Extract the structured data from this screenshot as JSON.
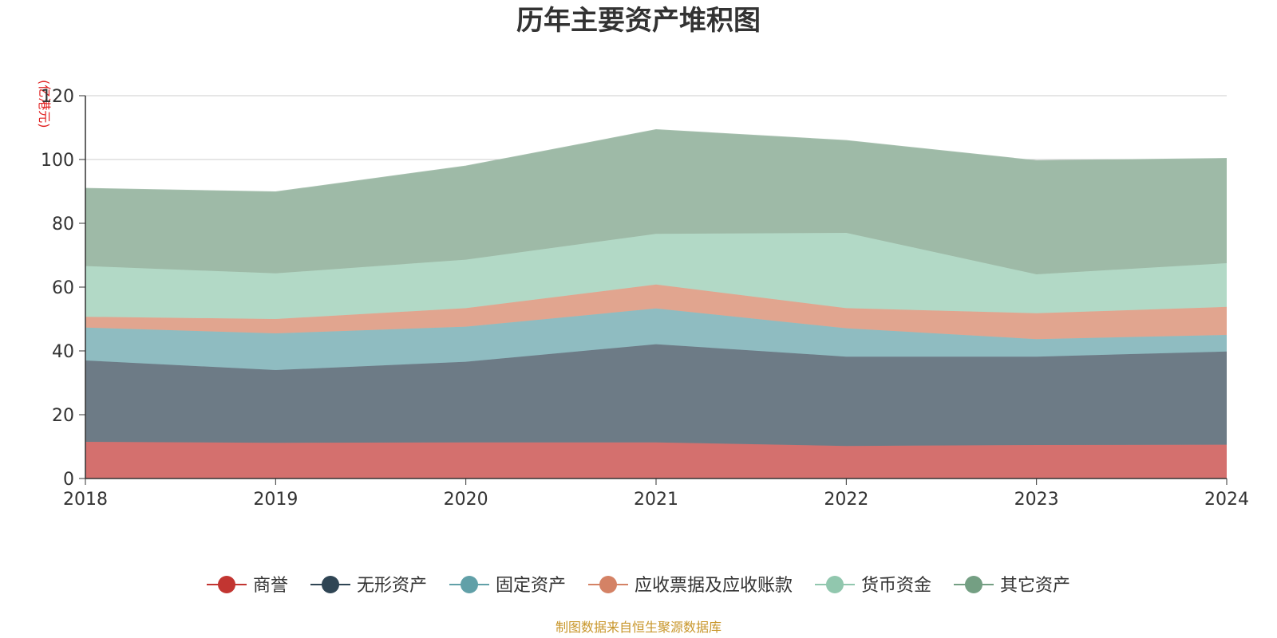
{
  "chart_data": {
    "type": "area",
    "stacked": true,
    "title": "历年主要资产堆积图",
    "unit_label": "(亿港元)",
    "source": "制图数据来自恒生聚源数据库",
    "x": [
      "2018",
      "2019",
      "2020",
      "2021",
      "2022",
      "2023",
      "2024"
    ],
    "ylim": [
      0,
      120
    ],
    "yticks": [
      0,
      20,
      40,
      60,
      80,
      100,
      120
    ],
    "grid": true,
    "legend_position": "bottom",
    "series": [
      {
        "name": "商誉",
        "color": "#c23531",
        "fill": "#d4706e",
        "values": [
          11.5,
          11.2,
          11.3,
          11.3,
          10.2,
          10.5,
          10.6
        ]
      },
      {
        "name": "无形资产",
        "color": "#2f4554",
        "fill": "#6d7b86",
        "values": [
          25.5,
          22.8,
          25.3,
          30.8,
          28.0,
          27.7,
          29.2
        ]
      },
      {
        "name": "固定资产",
        "color": "#61a0a8",
        "fill": "#8fbcc1",
        "values": [
          10.3,
          11.5,
          11.0,
          11.2,
          8.9,
          5.5,
          5.2
        ]
      },
      {
        "name": "应收票据及应收账款",
        "color": "#d48265",
        "fill": "#e1a58f",
        "values": [
          3.4,
          4.5,
          5.8,
          7.5,
          6.3,
          8.1,
          8.8
        ]
      },
      {
        "name": "货币资金",
        "color": "#91c7ae",
        "fill": "#b2d9c6",
        "values": [
          15.9,
          14.3,
          15.2,
          15.9,
          23.6,
          12.2,
          13.7
        ]
      },
      {
        "name": "其它资产",
        "color": "#749f83",
        "fill": "#9ebaa7",
        "values": [
          24.3,
          25.5,
          29.3,
          32.6,
          28.9,
          35.6,
          32.8
        ]
      }
    ]
  }
}
